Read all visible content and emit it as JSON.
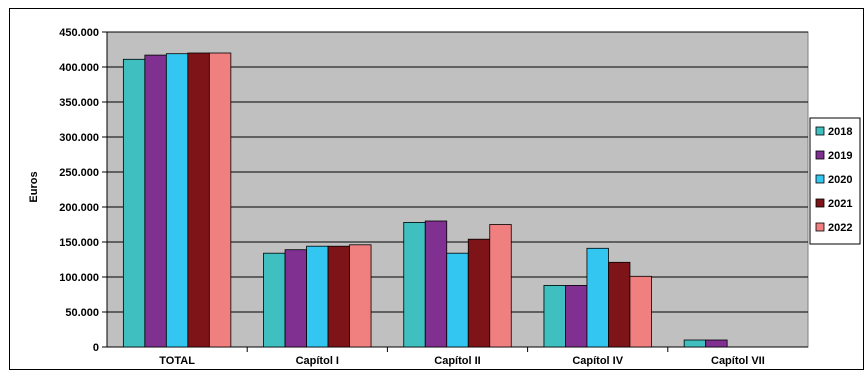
{
  "chart_data": {
    "type": "bar",
    "title": "",
    "xlabel": "",
    "ylabel": "Euros",
    "categories": [
      "TOTAL",
      "Capítol I",
      "Capítol II",
      "Capítol IV",
      "Capítol VII"
    ],
    "ylim": [
      0,
      450000
    ],
    "yticks": [
      0,
      50000,
      100000,
      150000,
      200000,
      250000,
      300000,
      350000,
      400000,
      450000
    ],
    "ytick_labels": [
      "0",
      "50.000",
      "100.000",
      "150.000",
      "200.000",
      "250.000",
      "300.000",
      "350.000",
      "400.000",
      "450.000"
    ],
    "grid": true,
    "legend_position": "right",
    "plot_background": "#c0c0c0",
    "series": [
      {
        "name": "2018",
        "color": "#3fbfbf",
        "values": [
          411000,
          134000,
          178000,
          88000,
          10000
        ]
      },
      {
        "name": "2019",
        "color": "#7f3090",
        "values": [
          417000,
          139000,
          180000,
          88000,
          10000
        ]
      },
      {
        "name": "2020",
        "color": "#33c6f0",
        "values": [
          419000,
          144000,
          134000,
          141000,
          0
        ]
      },
      {
        "name": "2021",
        "color": "#7f1418",
        "values": [
          420000,
          144000,
          154000,
          121000,
          0
        ]
      },
      {
        "name": "2022",
        "color": "#f08080",
        "values": [
          420000,
          146000,
          175000,
          101000,
          0
        ]
      }
    ]
  }
}
